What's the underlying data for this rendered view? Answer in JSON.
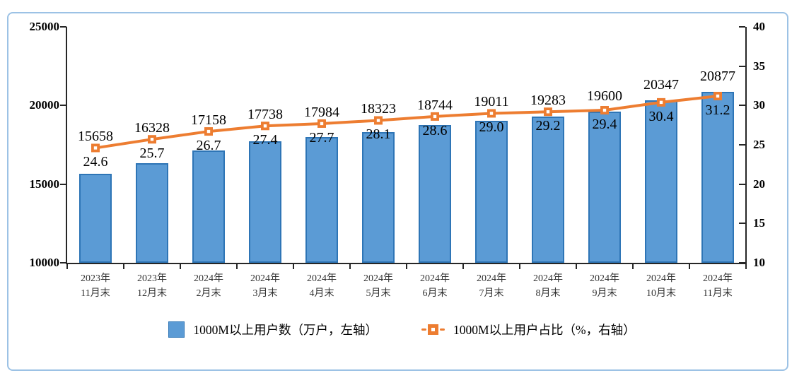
{
  "chart_data": {
    "type": "combo-bar-line",
    "categories": [
      "2023年\n11月末",
      "2023年\n12月末",
      "2024年\n2月末",
      "2024年\n3月末",
      "2024年\n4月末",
      "2024年\n5月末",
      "2024年\n6月末",
      "2024年\n7月末",
      "2024年\n8月末",
      "2024年\n9月末",
      "2024年\n10月末",
      "2024年\n11月末"
    ],
    "series": [
      {
        "name": "1000M以上用户数（万户，左轴）",
        "type": "bar",
        "axis": "left",
        "values": [
          15658,
          16328,
          17158,
          17738,
          17984,
          18323,
          18744,
          19011,
          19283,
          19600,
          20347,
          20877
        ],
        "value_labels": [
          "15658",
          "16328",
          "17158",
          "17738",
          "17984",
          "18323",
          "18744",
          "19011",
          "19283",
          "19600",
          "20347",
          "20877"
        ]
      },
      {
        "name": "1000M以上用户占比（%，右轴）",
        "type": "line",
        "axis": "right",
        "values": [
          24.6,
          25.7,
          26.7,
          27.4,
          27.7,
          28.1,
          28.6,
          29.0,
          29.2,
          29.4,
          30.4,
          31.2
        ],
        "value_labels": [
          "24.6",
          "25.7",
          "26.7",
          "27.4",
          "27.7",
          "28.1",
          "28.6",
          "29.0",
          "29.2",
          "29.4",
          "30.4",
          "31.2"
        ]
      }
    ],
    "left_axis": {
      "min": 10000,
      "max": 25000,
      "step": 5000,
      "tick_labels": [
        "25000",
        "20000",
        "15000",
        "10000"
      ]
    },
    "right_axis": {
      "min": 10,
      "max": 40,
      "step": 5,
      "tick_labels": [
        "40",
        "35",
        "30",
        "25",
        "20",
        "15",
        "10"
      ]
    },
    "legend_position": "bottom",
    "grid": false,
    "colors": {
      "bar_fill": "#5B9BD5",
      "bar_border": "#2E75B6",
      "line": "#ED7D31",
      "frame_border": "#9CC2E5",
      "axis": "#262626"
    }
  }
}
